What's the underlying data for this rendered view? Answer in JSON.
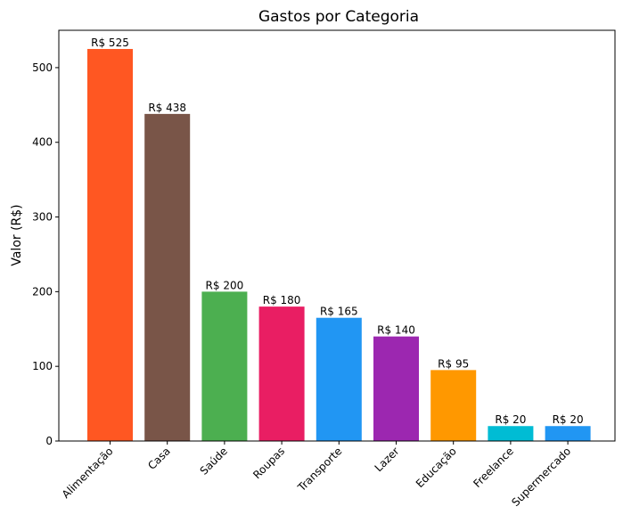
{
  "chart_data": {
    "type": "bar",
    "title": "Gastos por Categoria",
    "xlabel": "",
    "ylabel": "Valor (R$)",
    "ylim": [
      0,
      550
    ],
    "yticks": [
      0,
      100,
      200,
      300,
      400,
      500
    ],
    "categories": [
      "Alimentação",
      "Casa",
      "Saúde",
      "Roupas",
      "Transporte",
      "Lazer",
      "Educação",
      "Freelance",
      "Supermercado"
    ],
    "values": [
      525,
      438,
      200,
      180,
      165,
      140,
      95,
      20,
      20
    ],
    "data_labels": [
      "R$ 525",
      "R$ 438",
      "R$ 200",
      "R$ 180",
      "R$ 165",
      "R$ 140",
      "R$ 95",
      "R$ 20",
      "R$ 20"
    ],
    "colors": [
      "#FF5722",
      "#795548",
      "#4CAF50",
      "#E91E63",
      "#2196F3",
      "#9C27B0",
      "#FF9800",
      "#00BCD4",
      "#2196F3"
    ],
    "grid": false,
    "legend": "none",
    "x_tick_rotation": 45
  }
}
